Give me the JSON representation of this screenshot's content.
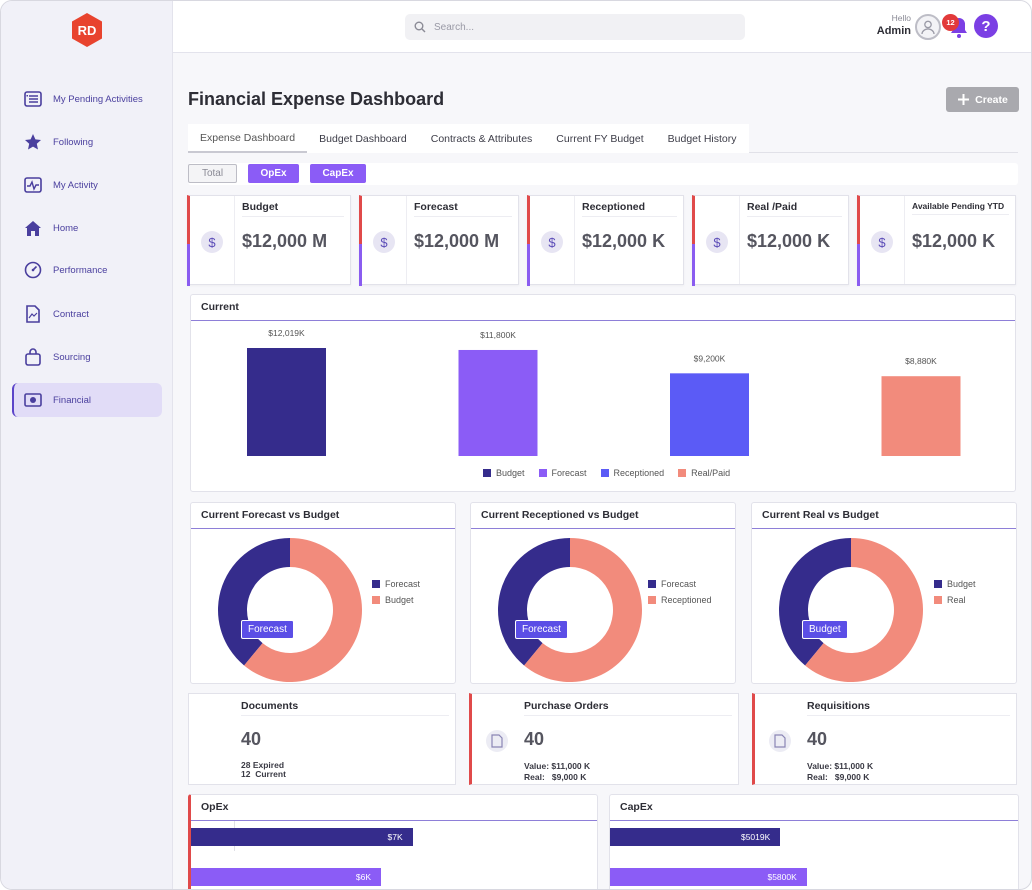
{
  "app": {
    "logo_text": "RD"
  },
  "sidebar": {
    "items": [
      {
        "label": "My Pending Activities",
        "icon": "list-icon"
      },
      {
        "label": "Following",
        "icon": "star-icon"
      },
      {
        "label": "My Activity",
        "icon": "activity-icon"
      },
      {
        "label": "Home",
        "icon": "home-icon"
      },
      {
        "label": "Performance",
        "icon": "gauge-icon"
      },
      {
        "label": "Contract",
        "icon": "document-icon"
      },
      {
        "label": "Sourcing",
        "icon": "bag-icon"
      },
      {
        "label": "Financial",
        "icon": "money-icon"
      }
    ]
  },
  "header": {
    "search_placeholder": "Search...",
    "greeting": "Hello",
    "user": "Admin",
    "notifications": "12",
    "help": "?"
  },
  "page": {
    "title": "Financial Expense Dashboard",
    "create_label": "Create",
    "tabs": [
      "Expense Dashboard",
      "Budget Dashboard",
      "Contracts & Attributes",
      "Current FY Budget",
      "Budget History"
    ],
    "filters": [
      "Total",
      "OpEx",
      "CapEx"
    ]
  },
  "kpis": [
    {
      "title": "Budget",
      "value": "$12,000 M"
    },
    {
      "title": "Forecast",
      "value": "$12,000 M"
    },
    {
      "title": "Receptioned",
      "value": "$12,000 K"
    },
    {
      "title": "Real /Paid",
      "value": "$12,000 K"
    },
    {
      "title": "Available Pending YTD",
      "value": "$12,000 K"
    }
  ],
  "currency_symbol": "$",
  "colors": {
    "budget": "#352c8c",
    "forecast": "#8b5cf6",
    "receptioned": "#5b5bf6",
    "real": "#f28b7c",
    "accent": "#7b3fe4"
  },
  "chart_data": [
    {
      "type": "bar",
      "title": "Current",
      "categories": [
        "Budget",
        "Forecast",
        "Receptioned",
        "Real/Paid"
      ],
      "values": [
        12019,
        11800,
        9200,
        8880
      ],
      "value_labels": [
        "$12,019K",
        "$11,800K",
        "$9,200K",
        "$8,880K"
      ],
      "ylim": [
        0,
        12019
      ]
    },
    {
      "type": "pie",
      "title": "Current Forecast vs Budget",
      "labels": [
        "Forecast",
        "Budget"
      ],
      "values": [
        39,
        61
      ],
      "callout": "Forecast"
    },
    {
      "type": "pie",
      "title": "Current Receptioned vs Budget",
      "labels": [
        "Forecast",
        "Receptioned"
      ],
      "values": [
        39,
        61
      ],
      "callout": "Forecast"
    },
    {
      "type": "pie",
      "title": "Current Real vs Budget",
      "labels": [
        "Budget",
        "Real"
      ],
      "values": [
        39,
        61
      ],
      "callout": "Budget"
    },
    {
      "type": "bar",
      "title": "OpEx",
      "orientation": "horizontal",
      "values": [
        7,
        6
      ],
      "value_labels": [
        "$7K",
        "$6K"
      ],
      "xlim": [
        0,
        15
      ]
    },
    {
      "type": "bar",
      "title": "CapEx",
      "orientation": "horizontal",
      "values": [
        5019,
        5800
      ],
      "value_labels": [
        "$5019K",
        "$5800K"
      ],
      "xlim": [
        0,
        14000
      ]
    }
  ],
  "documents": {
    "title": "Documents",
    "value": "40",
    "expired_count": "28",
    "expired_label": "Expired",
    "current_count": "12",
    "current_label": "Current"
  },
  "purchase_orders": {
    "title": "Purchase Orders",
    "value": "40",
    "value_line": "Value: $11,000 K",
    "real_line": "Real:   $9,000 K"
  },
  "requisitions": {
    "title": "Requisitions",
    "value": "40",
    "value_line": "Value: $11,000 K",
    "real_line": "Real:   $9,000 K"
  }
}
